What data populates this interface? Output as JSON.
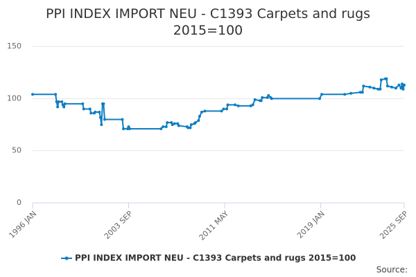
{
  "chart_data": {
    "type": "line",
    "title": "PPI INDEX IMPORT NEU - C1393 Carpets and rugs 2015=100",
    "source": "Source:",
    "x": [
      "1996-01",
      "1997-11",
      "1997-12",
      "1998-01",
      "1998-02",
      "1998-05",
      "1998-06",
      "1998-07",
      "1998-08",
      "2000-01",
      "2000-02",
      "2000-08",
      "2000-09",
      "2000-12",
      "2001-01",
      "2001-05",
      "2001-06",
      "2001-07",
      "2001-08",
      "2001-09",
      "2001-10",
      "2003-03",
      "2003-04",
      "2003-08",
      "2003-09",
      "2003-10",
      "2006-04",
      "2006-06",
      "2006-09",
      "2006-10",
      "2007-02",
      "2007-03",
      "2007-05",
      "2007-08",
      "2007-09",
      "2008-05",
      "2008-06",
      "2008-08",
      "2008-09",
      "2008-12",
      "2009-01",
      "2009-04",
      "2009-05",
      "2009-07",
      "2009-10",
      "2011-02",
      "2011-04",
      "2011-07",
      "2011-08",
      "2012-03",
      "2012-06",
      "2013-06",
      "2013-08",
      "2013-10",
      "2014-03",
      "2014-04",
      "2014-05",
      "2014-10",
      "2014-11",
      "2015-01",
      "2015-02",
      "2018-12",
      "2019-02",
      "2020-12",
      "2021-06",
      "2022-03",
      "2022-05",
      "2022-06",
      "2022-12",
      "2023-04",
      "2023-08",
      "2023-10",
      "2023-11",
      "2024-03",
      "2024-04",
      "2024-05",
      "2024-09",
      "2025-01",
      "2025-04",
      "2025-06",
      "2025-07",
      "2025-08",
      "2025-09"
    ],
    "series": [
      {
        "name": "PPI INDEX IMPORT NEU - C1393 Carpets and rugs 2015=100",
        "color": "#0f7dc2",
        "values": [
          104,
          104,
          97,
          92,
          97,
          97,
          94,
          92,
          95,
          95,
          90,
          90,
          86,
          86,
          87,
          87,
          82,
          75,
          95,
          95,
          80,
          80,
          71,
          71,
          73,
          71,
          71,
          73,
          73,
          77,
          77,
          75,
          76,
          76,
          74,
          73,
          72,
          72,
          75,
          76,
          77,
          79,
          83,
          87,
          88,
          88,
          90,
          90,
          94,
          94,
          93,
          93,
          94,
          99,
          98,
          98,
          101,
          101,
          103,
          101,
          100,
          100,
          104,
          104,
          105,
          106,
          106,
          112,
          111,
          110,
          109,
          109,
          118,
          119,
          119,
          112,
          111,
          110,
          113,
          110,
          114,
          109,
          113
        ]
      }
    ],
    "xlim": [
      "1996-01",
      "2025-09"
    ],
    "xticks": [
      {
        "value": "1996-01",
        "label": "1996 JAN"
      },
      {
        "value": "2003-09",
        "label": "2003 SEP"
      },
      {
        "value": "2011-05",
        "label": "2011 MAY"
      },
      {
        "value": "2019-01",
        "label": "2019 JAN"
      },
      {
        "value": "2025-09",
        "label": "2025 SEP"
      }
    ],
    "ylim": [
      0,
      150
    ],
    "yticks": [
      0,
      50,
      100,
      150
    ],
    "grid": true
  }
}
